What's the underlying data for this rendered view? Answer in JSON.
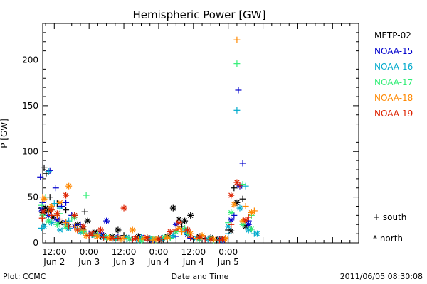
{
  "chart_data": {
    "type": "scatter",
    "title": "Hemispheric Power [GW]",
    "ylabel": "P [GW]",
    "xlabel": "Date and Time",
    "ylim": [
      0,
      240
    ],
    "yticks": [
      0,
      50,
      100,
      150,
      200
    ],
    "xlim": [
      -16,
      93
    ],
    "xticks": [
      {
        "x": -12,
        "time": "12:00",
        "date": "Jun 2"
      },
      {
        "x": 0,
        "time": "0:00",
        "date": "Jun 3"
      },
      {
        "x": 12,
        "time": "12:00",
        "date": "Jun 3"
      },
      {
        "x": 24,
        "time": "0:00",
        "date": "Jun 4"
      },
      {
        "x": 36,
        "time": "12:00",
        "date": "Jun 4"
      },
      {
        "x": 48,
        "time": "0:00",
        "date": "Jun 5"
      }
    ],
    "x_units": "hours relative to 0:00 Jun 3",
    "markers": {
      "south": "+",
      "north": "*"
    },
    "legend_markers": [
      {
        "symbol": "+",
        "label": "south"
      },
      {
        "symbol": "*",
        "label": "north"
      }
    ],
    "series": [
      {
        "name": "METP-02",
        "color": "#000000",
        "south": [
          [
            -16.5,
            38
          ],
          [
            -15.5,
            82
          ],
          [
            -14.8,
            76
          ],
          [
            -13.5,
            50
          ],
          [
            -11,
            43
          ],
          [
            -8,
            36
          ],
          [
            -5,
            30
          ],
          [
            -1.5,
            34
          ],
          [
            1,
            9
          ],
          [
            4,
            7
          ],
          [
            8,
            5
          ],
          [
            12,
            8
          ],
          [
            16,
            5
          ],
          [
            20,
            6
          ],
          [
            24,
            5
          ],
          [
            28,
            8
          ],
          [
            32,
            18
          ],
          [
            36,
            4
          ],
          [
            40,
            5
          ],
          [
            44,
            3
          ],
          [
            48,
            14
          ],
          [
            50,
            60
          ],
          [
            53,
            48
          ],
          [
            56,
            15
          ]
        ],
        "north": [
          [
            -16,
            33
          ],
          [
            -15,
            38
          ],
          [
            -14,
            35
          ],
          [
            -12.5,
            28
          ],
          [
            -10,
            22
          ],
          [
            -7,
            18
          ],
          [
            -4,
            20
          ],
          [
            -2,
            15
          ],
          [
            -0.5,
            24
          ],
          [
            2,
            12
          ],
          [
            5,
            8
          ],
          [
            8,
            7
          ],
          [
            10,
            14
          ],
          [
            13,
            6
          ],
          [
            17,
            7
          ],
          [
            21,
            4
          ],
          [
            25,
            3
          ],
          [
            27,
            7
          ],
          [
            29,
            38
          ],
          [
            31,
            26
          ],
          [
            33,
            24
          ],
          [
            35,
            30
          ],
          [
            38,
            7
          ],
          [
            42,
            6
          ],
          [
            45,
            4
          ],
          [
            49,
            13
          ],
          [
            51,
            44
          ],
          [
            54,
            18
          ]
        ]
      },
      {
        "name": "NOAA-15",
        "color": "#0000cc",
        "south": [
          [
            -16.8,
            72
          ],
          [
            -16,
            44
          ],
          [
            -13.5,
            79
          ],
          [
            -11.5,
            60
          ],
          [
            -9.5,
            40
          ],
          [
            -8,
            44
          ],
          [
            -6,
            30
          ],
          [
            -3,
            20
          ],
          [
            0,
            10
          ],
          [
            5,
            8
          ],
          [
            10,
            6
          ],
          [
            15,
            4
          ],
          [
            20,
            3
          ],
          [
            25,
            5
          ],
          [
            30,
            7
          ],
          [
            35,
            5
          ],
          [
            40,
            4
          ],
          [
            45,
            4
          ],
          [
            50,
            30
          ],
          [
            51.5,
            167
          ],
          [
            53,
            87
          ],
          [
            55,
            24
          ]
        ],
        "north": [
          [
            -16.5,
            37
          ],
          [
            -14,
            30
          ],
          [
            -11,
            25
          ],
          [
            -8,
            22
          ],
          [
            -5,
            18
          ],
          [
            -2,
            12
          ],
          [
            2,
            8
          ],
          [
            4,
            10
          ],
          [
            6,
            24
          ],
          [
            10,
            6
          ],
          [
            14,
            4
          ],
          [
            18,
            6
          ],
          [
            22,
            3
          ],
          [
            26,
            6
          ],
          [
            30,
            20
          ],
          [
            34,
            9
          ],
          [
            38,
            4
          ],
          [
            42,
            5
          ],
          [
            46,
            3
          ],
          [
            49,
            25
          ],
          [
            52,
            62
          ],
          [
            55,
            20
          ]
        ]
      },
      {
        "name": "NOAA-16",
        "color": "#00aacc",
        "south": [
          [
            -16.4,
            16
          ],
          [
            -14,
            78
          ],
          [
            -12,
            43
          ],
          [
            -10,
            38
          ],
          [
            -7,
            24
          ],
          [
            -4,
            16
          ],
          [
            -1,
            10
          ],
          [
            3,
            7
          ],
          [
            8,
            5
          ],
          [
            13,
            4
          ],
          [
            18,
            6
          ],
          [
            23,
            4
          ],
          [
            28,
            6
          ],
          [
            33,
            12
          ],
          [
            38,
            4
          ],
          [
            43,
            3
          ],
          [
            48,
            10
          ],
          [
            51,
            145
          ],
          [
            54,
            62
          ],
          [
            57,
            10
          ]
        ],
        "north": [
          [
            -15.5,
            18
          ],
          [
            -13,
            22
          ],
          [
            -10,
            14
          ],
          [
            -7,
            16
          ],
          [
            -3,
            12
          ],
          [
            1,
            9
          ],
          [
            5,
            6
          ],
          [
            9,
            4
          ],
          [
            13,
            6
          ],
          [
            17,
            3
          ],
          [
            21,
            5
          ],
          [
            25,
            4
          ],
          [
            29,
            8
          ],
          [
            33,
            14
          ],
          [
            37,
            5
          ],
          [
            41,
            4
          ],
          [
            45,
            3
          ],
          [
            48,
            18
          ],
          [
            52,
            38
          ],
          [
            55,
            14
          ],
          [
            58,
            10
          ]
        ]
      },
      {
        "name": "NOAA-17",
        "color": "#33ee77",
        "south": [
          [
            -16.5,
            41
          ],
          [
            -15,
            50
          ],
          [
            -13,
            36
          ],
          [
            -10,
            32
          ],
          [
            -6,
            26
          ],
          [
            -1,
            52
          ],
          [
            3,
            9
          ],
          [
            8,
            6
          ],
          [
            13,
            5
          ],
          [
            18,
            4
          ],
          [
            23,
            3
          ],
          [
            28,
            5
          ],
          [
            33,
            16
          ],
          [
            38,
            4
          ],
          [
            43,
            3
          ],
          [
            48,
            22
          ],
          [
            51,
            196
          ],
          [
            53,
            64
          ],
          [
            56,
            30
          ]
        ],
        "north": [
          [
            -16,
            30
          ],
          [
            -14,
            24
          ],
          [
            -11,
            20
          ],
          [
            -8,
            18
          ],
          [
            -5,
            28
          ],
          [
            -2,
            12
          ],
          [
            2,
            8
          ],
          [
            6,
            6
          ],
          [
            10,
            5
          ],
          [
            14,
            4
          ],
          [
            18,
            3
          ],
          [
            22,
            4
          ],
          [
            26,
            6
          ],
          [
            30,
            12
          ],
          [
            34,
            10
          ],
          [
            38,
            4
          ],
          [
            42,
            5
          ],
          [
            46,
            4
          ],
          [
            49,
            33
          ],
          [
            53,
            20
          ],
          [
            56,
            15
          ]
        ]
      },
      {
        "name": "NOAA-18",
        "color": "#ff8800",
        "south": [
          [
            -16,
            50
          ],
          [
            -14,
            34
          ],
          [
            -11,
            30
          ],
          [
            -8,
            22
          ],
          [
            -5,
            18
          ],
          [
            -2,
            14
          ],
          [
            2,
            8
          ],
          [
            7,
            6
          ],
          [
            12,
            5
          ],
          [
            17,
            4
          ],
          [
            22,
            3
          ],
          [
            27,
            5
          ],
          [
            32,
            12
          ],
          [
            37,
            5
          ],
          [
            42,
            4
          ],
          [
            47,
            5
          ],
          [
            51,
            222
          ],
          [
            54,
            40
          ],
          [
            57,
            35
          ]
        ],
        "north": [
          [
            -15.5,
            48
          ],
          [
            -13,
            40
          ],
          [
            -10,
            44
          ],
          [
            -7,
            62
          ],
          [
            -4,
            14
          ],
          [
            -1,
            8
          ],
          [
            3,
            7
          ],
          [
            7,
            5
          ],
          [
            11,
            4
          ],
          [
            15,
            14
          ],
          [
            19,
            5
          ],
          [
            23,
            4
          ],
          [
            27,
            6
          ],
          [
            31,
            16
          ],
          [
            35,
            10
          ],
          [
            39,
            8
          ],
          [
            43,
            4
          ],
          [
            47,
            4
          ],
          [
            50,
            42
          ],
          [
            53,
            24
          ],
          [
            56,
            33
          ]
        ]
      },
      {
        "name": "NOAA-19",
        "color": "#dd2200",
        "south": [
          [
            -16.2,
            27
          ],
          [
            -13,
            30
          ],
          [
            -10,
            26
          ],
          [
            -7,
            18
          ],
          [
            -4,
            14
          ],
          [
            0,
            8
          ],
          [
            5,
            6
          ],
          [
            10,
            5
          ],
          [
            15,
            4
          ],
          [
            20,
            3
          ],
          [
            25,
            4
          ],
          [
            30,
            14
          ],
          [
            35,
            6
          ],
          [
            40,
            4
          ],
          [
            45,
            3
          ],
          [
            49,
            20
          ],
          [
            52,
            63
          ],
          [
            55,
            28
          ]
        ],
        "north": [
          [
            -15.8,
            34
          ],
          [
            -13,
            36
          ],
          [
            -11,
            32
          ],
          [
            -8,
            52
          ],
          [
            -5,
            30
          ],
          [
            -2,
            18
          ],
          [
            1,
            10
          ],
          [
            4,
            14
          ],
          [
            8,
            5
          ],
          [
            12,
            38
          ],
          [
            16,
            5
          ],
          [
            20,
            6
          ],
          [
            24,
            4
          ],
          [
            28,
            12
          ],
          [
            31,
            22
          ],
          [
            34,
            14
          ],
          [
            38,
            6
          ],
          [
            42,
            4
          ],
          [
            46,
            4
          ],
          [
            49,
            52
          ],
          [
            51,
            66
          ],
          [
            54,
            25
          ]
        ]
      }
    ]
  },
  "footer": {
    "left": "Plot: CCMC",
    "center": "Date and Time",
    "right": "2011/06/05 08:30:08"
  }
}
